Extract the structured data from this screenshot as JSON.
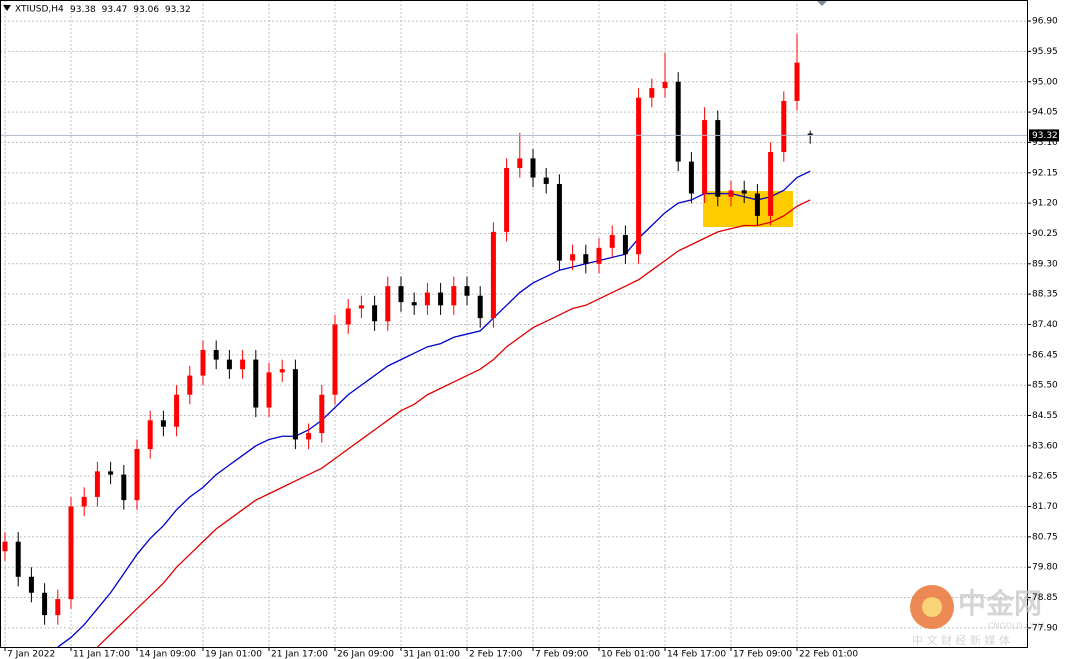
{
  "chart_data": {
    "type": "candlestick",
    "symbol": "XTIUSD,H4",
    "categories": [
      "7 Jan 2022",
      null,
      null,
      null,
      null,
      "11 Jan 17:00",
      null,
      null,
      null,
      null,
      "14 Jan 09:00",
      null,
      null,
      null,
      null,
      "19 Jan 01:00",
      null,
      null,
      null,
      null,
      "21 Jan 17:00",
      null,
      null,
      null,
      null,
      "26 Jan 09:00",
      null,
      null,
      null,
      null,
      "31 Jan 01:00",
      null,
      null,
      null,
      null,
      "2 Feb 17:00",
      null,
      null,
      null,
      null,
      "7 Feb 09:00",
      null,
      null,
      null,
      null,
      "10 Feb 01:00",
      null,
      null,
      null,
      null,
      "14 Feb 17:00",
      null,
      null,
      null,
      null,
      "17 Feb 09:00",
      null,
      null,
      null,
      null,
      "22 Feb 01:00",
      null
    ],
    "open": [
      80.3,
      80.6,
      79.5,
      79.0,
      78.3,
      78.8,
      81.7,
      82.0,
      82.8,
      82.7,
      81.9,
      83.5,
      84.4,
      84.2,
      85.2,
      85.8,
      86.6,
      86.3,
      86.0,
      86.3,
      84.8,
      85.9,
      86.0,
      83.8,
      84.0,
      85.2,
      87.4,
      87.9,
      88.0,
      87.5,
      88.6,
      88.1,
      88.0,
      88.4,
      88.0,
      88.6,
      88.3,
      87.6,
      90.3,
      92.3,
      92.6,
      92.0,
      91.8,
      89.4,
      89.6,
      89.3,
      89.8,
      90.2,
      89.6,
      94.5,
      94.8,
      95.0,
      92.5,
      91.5,
      93.8,
      91.4,
      91.6,
      91.5,
      90.8,
      92.8,
      94.4,
      93.38
    ],
    "high": [
      80.9,
      80.9,
      79.8,
      79.3,
      79.1,
      82.0,
      82.3,
      83.1,
      83.1,
      83.0,
      83.8,
      84.7,
      84.7,
      85.5,
      86.1,
      86.9,
      86.9,
      86.6,
      86.6,
      86.6,
      86.2,
      86.3,
      86.3,
      84.3,
      85.5,
      87.7,
      88.2,
      88.3,
      88.3,
      88.9,
      88.9,
      88.4,
      88.7,
      88.7,
      88.9,
      88.9,
      88.6,
      90.6,
      92.6,
      93.4,
      92.9,
      92.3,
      92.1,
      89.9,
      89.9,
      90.1,
      90.5,
      90.5,
      94.8,
      95.1,
      95.9,
      95.3,
      92.8,
      94.2,
      94.1,
      91.9,
      91.9,
      91.8,
      93.1,
      94.7,
      96.5,
      93.47
    ],
    "low": [
      80.0,
      79.2,
      78.7,
      78.0,
      78.0,
      78.5,
      81.4,
      81.7,
      82.4,
      81.6,
      81.6,
      83.2,
      83.9,
      83.9,
      84.9,
      85.5,
      86.0,
      85.7,
      85.7,
      84.5,
      84.5,
      85.6,
      83.5,
      83.5,
      83.7,
      84.9,
      87.1,
      87.6,
      87.2,
      87.2,
      87.8,
      87.7,
      87.7,
      87.7,
      87.7,
      88.0,
      87.3,
      87.3,
      90.0,
      92.0,
      91.7,
      91.5,
      89.1,
      89.1,
      89.0,
      89.0,
      89.5,
      89.3,
      89.3,
      94.2,
      94.5,
      92.2,
      91.2,
      91.2,
      91.1,
      91.1,
      91.2,
      90.5,
      90.5,
      92.5,
      94.1,
      93.06
    ],
    "close": [
      80.6,
      79.5,
      79.0,
      78.3,
      78.8,
      81.7,
      82.0,
      82.8,
      82.7,
      81.9,
      83.5,
      84.4,
      84.2,
      85.2,
      85.8,
      86.6,
      86.3,
      86.0,
      86.3,
      84.8,
      85.9,
      86.0,
      83.8,
      84.0,
      85.2,
      87.4,
      87.9,
      88.0,
      87.5,
      88.6,
      88.1,
      88.0,
      88.4,
      88.0,
      88.6,
      88.3,
      87.6,
      90.3,
      92.3,
      92.6,
      92.0,
      91.8,
      89.4,
      89.6,
      89.3,
      89.8,
      90.2,
      89.6,
      94.5,
      94.8,
      95.0,
      92.5,
      91.5,
      93.8,
      91.4,
      91.6,
      91.5,
      90.8,
      92.8,
      94.4,
      95.6,
      93.32
    ],
    "up_color": "#ff0000",
    "down_color": "#000000",
    "series": [
      {
        "color": "#0000cc",
        "values": [
          null,
          null,
          null,
          null,
          77.3,
          77.6,
          78.0,
          78.5,
          79.0,
          79.6,
          80.2,
          80.7,
          81.1,
          81.6,
          82.0,
          82.3,
          82.7,
          83.0,
          83.3,
          83.6,
          83.8,
          83.9,
          83.9,
          84.1,
          84.4,
          84.8,
          85.2,
          85.5,
          85.8,
          86.1,
          86.3,
          86.5,
          86.7,
          86.8,
          87.0,
          87.1,
          87.2,
          87.6,
          88.0,
          88.4,
          88.7,
          88.9,
          89.1,
          89.2,
          89.3,
          89.4,
          89.5,
          89.6,
          90.1,
          90.5,
          90.9,
          91.2,
          91.3,
          91.5,
          91.5,
          91.5,
          91.4,
          91.3,
          91.4,
          91.6,
          92.0,
          92.2
        ]
      },
      {
        "color": "#e00000",
        "values": [
          null,
          null,
          null,
          null,
          null,
          null,
          null,
          77.3,
          77.7,
          78.1,
          78.5,
          78.9,
          79.3,
          79.8,
          80.2,
          80.6,
          81.0,
          81.3,
          81.6,
          81.9,
          82.1,
          82.3,
          82.5,
          82.7,
          82.9,
          83.2,
          83.5,
          83.8,
          84.1,
          84.4,
          84.7,
          84.9,
          85.2,
          85.4,
          85.6,
          85.8,
          86.0,
          86.3,
          86.7,
          87.0,
          87.3,
          87.5,
          87.7,
          87.9,
          88.0,
          88.2,
          88.4,
          88.6,
          88.8,
          89.1,
          89.4,
          89.7,
          89.9,
          90.1,
          90.3,
          90.4,
          90.5,
          90.5,
          90.6,
          90.8,
          91.1,
          91.3
        ]
      }
    ],
    "ylim": [
      77.27,
      97.56
    ],
    "yticks": [
      {
        "value": 96.9,
        "label": "96.90"
      },
      95.95,
      {
        "value": 95,
        "label": "95.00"
      },
      94.05,
      {
        "value": 93.1,
        "label": "93.10"
      },
      92.15,
      {
        "value": 91.2,
        "label": "91.20"
      },
      90.25,
      {
        "value": 89.3,
        "label": "89.30"
      },
      88.35,
      {
        "value": 87.4,
        "label": "87.40"
      },
      86.45,
      {
        "value": 85.5,
        "label": "85.50"
      },
      84.55,
      {
        "value": 83.6,
        "label": "83.60"
      },
      82.65,
      {
        "value": 81.7,
        "label": "81.70"
      },
      80.75,
      {
        "value": 79.8,
        "label": "79.80"
      },
      78.85,
      {
        "value": 77.9,
        "label": "77.90"
      }
    ],
    "grid": true,
    "watermark": {
      "name": "中金网",
      "site": "CNGOLD.COM",
      "tagline": "中 文 财 经 新 媒 体"
    }
  }
}
